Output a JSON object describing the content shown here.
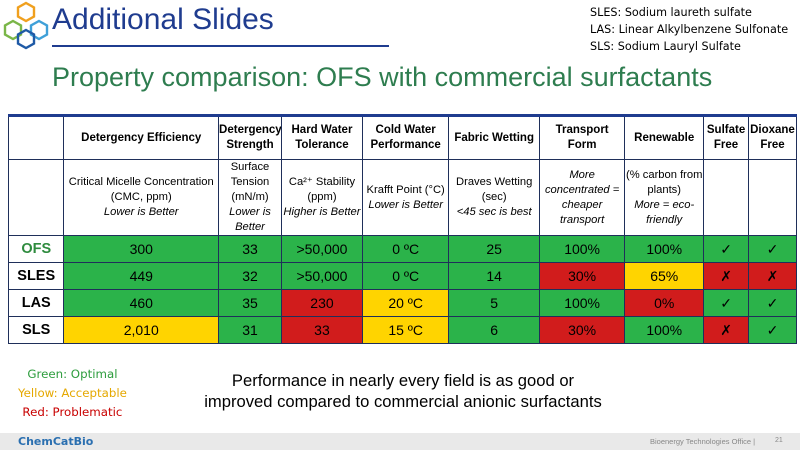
{
  "header": {
    "title": "Additional Slides"
  },
  "abbreviations": [
    "SLES: Sodium laureth sulfate",
    "LAS: Linear Alkylbenzene Sulfonate",
    "SLS: Sodium Lauryl Sulfate"
  ],
  "subtitle": "Property comparison: OFS with commercial surfactants",
  "table": {
    "headers": [
      "Detergency Efficiency",
      "Detergency Strength",
      "Hard Water Tolerance",
      "Cold Water Performance",
      "Fabric Wetting",
      "Transport Form",
      "Renewable",
      "Sulfate Free",
      "Dioxane Free"
    ],
    "criteria": [
      {
        "main": "Critical Micelle Concentration (CMC, ppm)",
        "note": "Lower is Better"
      },
      {
        "main": "Surface Tension (mN/m)",
        "note": "Lower is Better"
      },
      {
        "main": "Ca²⁺ Stability (ppm)",
        "note": "Higher is Better"
      },
      {
        "main": "Krafft Point (°C)",
        "note": "Lower is Better"
      },
      {
        "main": "Draves Wetting (sec)",
        "note": "<45 sec is best"
      },
      {
        "main": "",
        "note": "More concentrated = cheaper transport"
      },
      {
        "main": "(% carbon from plants)",
        "note": "More = eco-friendly"
      },
      {
        "main": "",
        "note": ""
      },
      {
        "main": "",
        "note": ""
      }
    ],
    "rows": [
      {
        "label": "OFS",
        "cells": [
          {
            "v": "300",
            "c": "g"
          },
          {
            "v": "33",
            "c": "g"
          },
          {
            "v": ">50,000",
            "c": "g"
          },
          {
            "v": "0 ºC",
            "c": "g"
          },
          {
            "v": "25",
            "c": "g"
          },
          {
            "v": "100%",
            "c": "g"
          },
          {
            "v": "100%",
            "c": "g"
          },
          {
            "v": "✓",
            "c": "g"
          },
          {
            "v": "✓",
            "c": "g"
          }
        ]
      },
      {
        "label": "SLES",
        "cells": [
          {
            "v": "449",
            "c": "g"
          },
          {
            "v": "32",
            "c": "g"
          },
          {
            "v": ">50,000",
            "c": "g"
          },
          {
            "v": "0 ºC",
            "c": "g"
          },
          {
            "v": "14",
            "c": "g"
          },
          {
            "v": "30%",
            "c": "r"
          },
          {
            "v": "65%",
            "c": "y"
          },
          {
            "v": "✗",
            "c": "r"
          },
          {
            "v": "✗",
            "c": "r"
          }
        ]
      },
      {
        "label": "LAS",
        "cells": [
          {
            "v": "460",
            "c": "g"
          },
          {
            "v": "35",
            "c": "g"
          },
          {
            "v": "230",
            "c": "r"
          },
          {
            "v": "20 ºC",
            "c": "y"
          },
          {
            "v": "5",
            "c": "g"
          },
          {
            "v": "100%",
            "c": "g"
          },
          {
            "v": "0%",
            "c": "r"
          },
          {
            "v": "✓",
            "c": "g"
          },
          {
            "v": "✓",
            "c": "g"
          }
        ]
      },
      {
        "label": "SLS",
        "cells": [
          {
            "v": "2,010",
            "c": "y"
          },
          {
            "v": "31",
            "c": "g"
          },
          {
            "v": "33",
            "c": "r"
          },
          {
            "v": "15 ºC",
            "c": "y"
          },
          {
            "v": "6",
            "c": "g"
          },
          {
            "v": "30%",
            "c": "r"
          },
          {
            "v": "100%",
            "c": "g"
          },
          {
            "v": "✗",
            "c": "r"
          },
          {
            "v": "✓",
            "c": "g"
          }
        ]
      }
    ]
  },
  "legend": {
    "green": "Green: Optimal",
    "yellow": "Yellow: Acceptable",
    "red": "Red: Problematic"
  },
  "summary": "Performance in nearly every field is as good or improved compared to commercial anionic surfactants",
  "footer": {
    "brand": "ChemCatBio",
    "office": "Bioenergy Technologies Office |",
    "page": "21"
  },
  "colors": {
    "green": "#2bb34a",
    "yellow": "#ffd400",
    "red": "#d11c1c",
    "title": "#1f3c8f",
    "subtitle": "#2e7d4f"
  },
  "icons": {
    "logo": "hexagon-cluster-logo"
  }
}
